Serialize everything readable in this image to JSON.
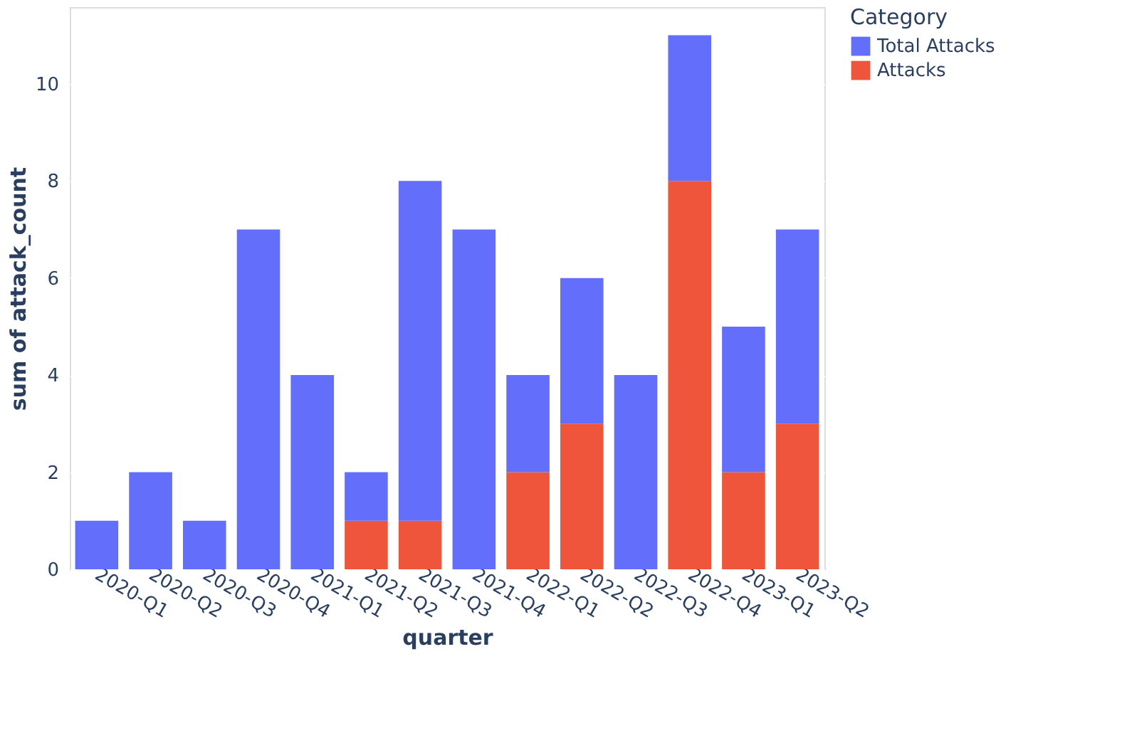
{
  "chart_data": {
    "type": "bar",
    "stacked": true,
    "xlabel": "quarter",
    "ylabel": "sum of attack_count",
    "legend_title": "Category",
    "legend": "top right",
    "categories": [
      "2020-Q1",
      "2020-Q2",
      "2020-Q3",
      "2020-Q4",
      "2021-Q1",
      "2021-Q2",
      "2021-Q3",
      "2021-Q4",
      "2022-Q1",
      "2022-Q2",
      "2022-Q3",
      "2022-Q4",
      "2023-Q1",
      "2023-Q2"
    ],
    "series": [
      {
        "name": "Attacks",
        "color": "#ef553b",
        "values": [
          null,
          null,
          null,
          null,
          null,
          1,
          1,
          null,
          2,
          3,
          null,
          8,
          2,
          3
        ]
      },
      {
        "name": "Total Attacks",
        "color": "#636efa",
        "values": [
          1,
          2,
          1,
          7,
          4,
          1,
          7,
          7,
          2,
          3,
          4,
          3,
          3,
          4
        ]
      }
    ],
    "ylim": [
      0,
      11.58
    ],
    "yticks": [
      0,
      2,
      4,
      6,
      8,
      10
    ],
    "grid": "y"
  }
}
